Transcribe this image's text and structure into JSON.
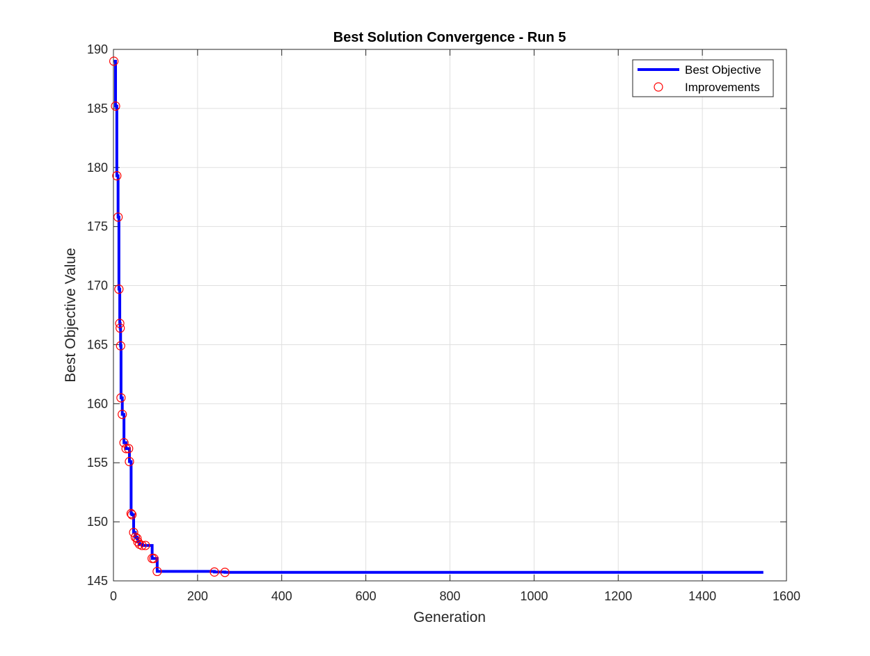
{
  "chart_data": {
    "type": "line",
    "title": "Best Solution Convergence - Run 5",
    "xlabel": "Generation",
    "ylabel": "Best Objective Value",
    "xlim": [
      0,
      1600
    ],
    "ylim": [
      145,
      190
    ],
    "xticks": [
      0,
      200,
      400,
      600,
      800,
      1000,
      1200,
      1400,
      1600
    ],
    "yticks": [
      145,
      150,
      155,
      160,
      165,
      170,
      175,
      180,
      185,
      190
    ],
    "grid": true,
    "legend_position": "top-right",
    "series": [
      {
        "name": "Best Objective",
        "style": "line",
        "color": "#0000ff",
        "x": [
          1,
          5,
          5,
          8,
          8,
          11,
          11,
          13,
          13,
          15,
          15,
          16,
          16,
          17,
          17,
          18,
          18,
          21,
          21,
          25,
          25,
          30,
          30,
          36,
          36,
          38,
          38,
          42,
          42,
          44,
          44,
          48,
          48,
          52,
          52,
          56,
          56,
          58,
          58,
          62,
          62,
          68,
          68,
          76,
          76,
          92,
          92,
          96,
          96,
          104,
          104,
          240,
          240,
          265,
          265,
          1545
        ],
        "y": [
          189.0,
          189.0,
          185.2,
          185.2,
          179.3,
          179.3,
          175.8,
          175.8,
          169.7,
          169.7,
          166.8,
          166.8,
          166.4,
          166.4,
          164.9,
          164.9,
          160.5,
          160.5,
          159.1,
          159.1,
          156.7,
          156.7,
          156.2,
          156.2,
          156.2,
          156.2,
          155.1,
          155.1,
          150.7,
          150.7,
          150.6,
          150.6,
          149.1,
          149.1,
          148.7,
          148.7,
          148.6,
          148.6,
          148.3,
          148.3,
          148.1,
          148.1,
          148.0,
          148.0,
          148.0,
          148.0,
          146.9,
          146.9,
          146.9,
          146.9,
          145.8,
          145.8,
          145.75,
          145.75,
          145.72,
          145.72
        ]
      },
      {
        "name": "Improvements",
        "style": "markers",
        "marker": "circle",
        "color": "#ff0000",
        "x": [
          1,
          5,
          8,
          11,
          13,
          15,
          16,
          17,
          18,
          21,
          25,
          30,
          36,
          38,
          42,
          44,
          48,
          52,
          56,
          58,
          62,
          68,
          76,
          92,
          96,
          104,
          240,
          265
        ],
        "y": [
          189.0,
          185.2,
          179.3,
          175.8,
          169.7,
          166.8,
          166.4,
          164.9,
          160.5,
          159.1,
          156.7,
          156.2,
          156.2,
          155.1,
          150.7,
          150.6,
          149.1,
          148.7,
          148.6,
          148.3,
          148.1,
          148.0,
          148.0,
          146.9,
          146.9,
          145.8,
          145.75,
          145.72
        ]
      }
    ]
  }
}
